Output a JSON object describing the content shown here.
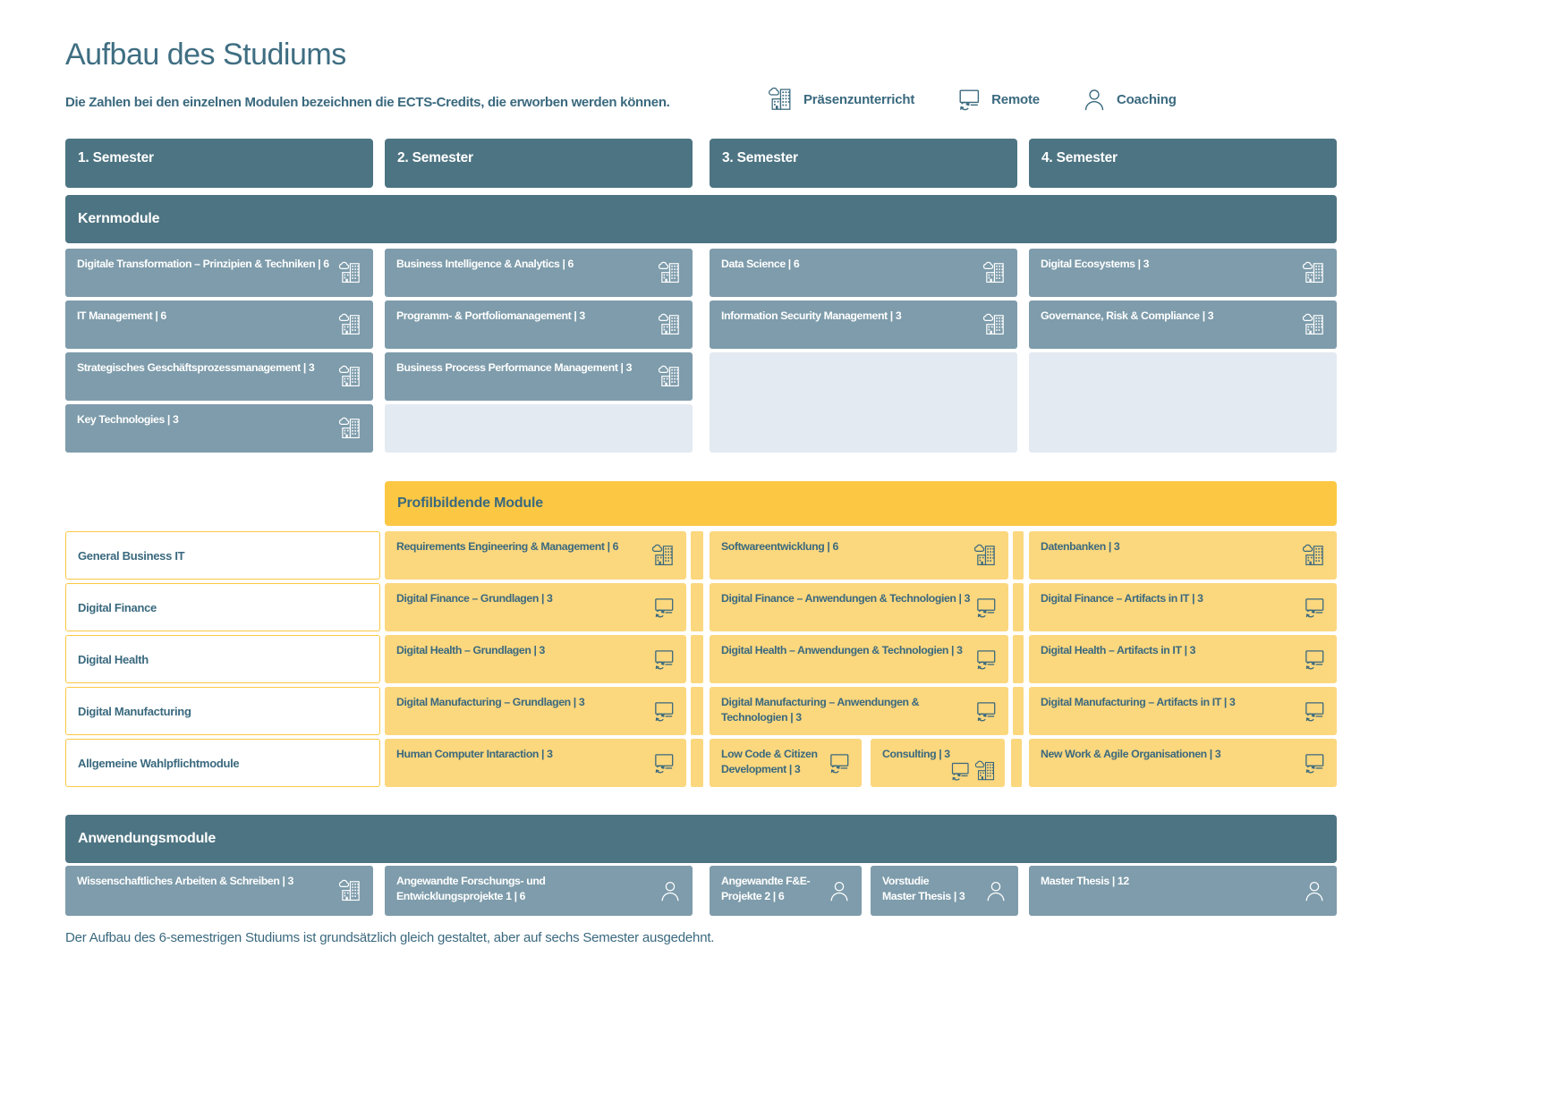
{
  "colors": {
    "header_teal": "#4D7482",
    "module_card_teal": "#7E9CAB",
    "empty_placeholder": "#E3EAF1",
    "accent_yellow": "#FCC844",
    "module_card_yellow": "#FBD77E",
    "text_teal": "#3A697E",
    "text_on_teal": "#FFFFFF"
  },
  "page": {
    "title": "Aufbau des Studiums",
    "subtitle": "Die Zahlen bei den einzelnen Modulen bezeichnen die ECTS-Credits, die erworben werden können.",
    "footnote": "Der Aufbau des 6-semestrigen Studiums ist grundsätzlich gleich gestaltet, aber auf sechs Semester ausgedehnt."
  },
  "legend": {
    "items": [
      {
        "label": "Präsenzunterricht",
        "icon": "building-icon"
      },
      {
        "label": "Remote",
        "icon": "monitor-sync-icon"
      },
      {
        "label": "Coaching",
        "icon": "person-icon"
      }
    ]
  },
  "semesters": [
    "1. Semester",
    "2. Semester",
    "3. Semester",
    "4. Semester"
  ],
  "kern": {
    "title": "Kernmodule",
    "modules": [
      {
        "label": "Digitale Transformation – Prinzipien & Techniken | 6",
        "icon": "building-icon",
        "semester": 1
      },
      {
        "label": "Business Intelligence & Analytics | 6",
        "icon": "building-icon",
        "semester": 2
      },
      {
        "label": "Data Science | 6",
        "icon": "building-icon",
        "semester": 3
      },
      {
        "label": "Digital Ecosystems | 3",
        "icon": "building-icon",
        "semester": 4
      },
      {
        "label": "IT Management | 6",
        "icon": "building-icon",
        "semester": 1
      },
      {
        "label": "Programm- & Portfoliomanagement | 3",
        "icon": "building-icon",
        "semester": 2
      },
      {
        "label": "Information Security Management | 3",
        "icon": "building-icon",
        "semester": 3
      },
      {
        "label": "Governance, Risk & Compliance  | 3",
        "icon": "building-icon",
        "semester": 4
      },
      {
        "label": "Strategisches Geschäftsprozessmanagement | 3",
        "icon": "building-icon",
        "semester": 1
      },
      {
        "label": "Business Process Performance Management | 3",
        "icon": "building-icon",
        "semester": 2
      },
      {
        "label": "Key Technologies | 3",
        "icon": "building-icon",
        "semester": 1
      }
    ]
  },
  "profil": {
    "title": "Profilbildende Module",
    "rows": [
      {
        "label": "General Business IT",
        "modules": [
          {
            "label": "Requirements Engineering & Management | 6",
            "icons": [
              "building-icon"
            ]
          },
          {
            "label": "Softwareentwicklung | 6",
            "icons": [
              "building-icon"
            ]
          },
          {
            "label": "Datenbanken | 3",
            "icons": [
              "building-icon"
            ]
          }
        ]
      },
      {
        "label": "Digital Finance",
        "modules": [
          {
            "label": "Digital Finance – Grundlagen | 3",
            "icons": [
              "monitor-sync-icon"
            ]
          },
          {
            "label": "Digital Finance – Anwendungen & Technologien | 3",
            "icons": [
              "monitor-sync-icon"
            ]
          },
          {
            "label": "Digital Finance – Artifacts in IT | 3",
            "icons": [
              "monitor-sync-icon"
            ]
          }
        ]
      },
      {
        "label": "Digital Health",
        "modules": [
          {
            "label": "Digital Health – Grundlagen | 3",
            "icons": [
              "monitor-sync-icon"
            ]
          },
          {
            "label": "Digital Health – Anwendungen & Technologien | 3",
            "icons": [
              "monitor-sync-icon"
            ]
          },
          {
            "label": "Digital Health – Artifacts in IT | 3",
            "icons": [
              "monitor-sync-icon"
            ]
          }
        ]
      },
      {
        "label": "Digital Manufacturing",
        "modules": [
          {
            "label": "Digital Manufacturing – Grundlagen | 3",
            "icons": [
              "monitor-sync-icon"
            ]
          },
          {
            "label": "Digital Manufacturing – Anwendungen &\nTechnologien | 3",
            "icons": [
              "monitor-sync-icon"
            ]
          },
          {
            "label": "Digital Manufacturing – Artifacts in IT | 3",
            "icons": [
              "monitor-sync-icon"
            ]
          }
        ]
      },
      {
        "label": "Allgemeine Wahlpflichtmodule",
        "modules": [
          {
            "label": "Human Computer Intaraction | 3",
            "icons": [
              "monitor-sync-icon"
            ]
          },
          {
            "label": "Low Code & Citizen\nDevelopment | 3",
            "icons": [
              "monitor-sync-icon"
            ]
          },
          {
            "label": "Consulting  | 3",
            "icons": [
              "monitor-sync-icon",
              "building-icon"
            ]
          },
          {
            "label": "New Work & Agile Organisationen | 3",
            "icons": [
              "monitor-sync-icon"
            ]
          }
        ]
      }
    ]
  },
  "anwendung": {
    "title": "Anwendungsmodule",
    "modules": [
      {
        "label": "Wissenschaftliches Arbeiten & Schreiben | 3",
        "icon": "building-icon"
      },
      {
        "label": "Angewandte Forschungs- und\nEntwicklungsprojekte 1 | 6",
        "icon": "person-icon"
      },
      {
        "label": "Angewandte F&E-\nProjekte 2 | 6",
        "icon": "person-icon"
      },
      {
        "label": "Vorstudie\nMaster Thesis | 3",
        "icon": "person-icon"
      },
      {
        "label": "Master Thesis | 12",
        "icon": "person-icon"
      }
    ]
  }
}
